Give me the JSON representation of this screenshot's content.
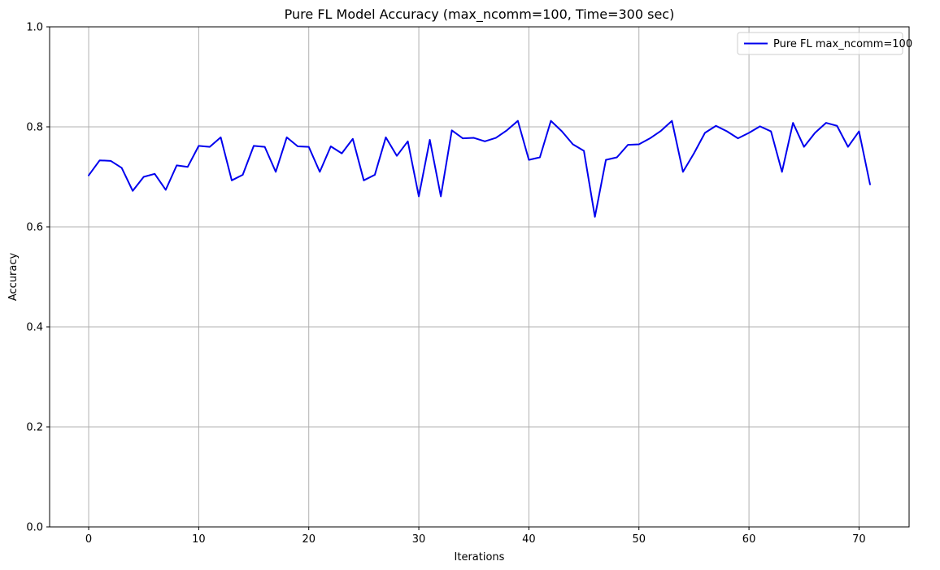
{
  "chart_data": {
    "type": "line",
    "title": "Pure FL Model Accuracy (max_ncomm=100, Time=300 sec)",
    "xlabel": "Iterations",
    "ylabel": "Accuracy",
    "xlim": [
      -3.55,
      74.55
    ],
    "ylim": [
      0,
      1
    ],
    "xticks": [
      0,
      10,
      20,
      30,
      40,
      50,
      60,
      70
    ],
    "yticks": [
      0.0,
      0.2,
      0.4,
      0.6,
      0.8,
      1.0
    ],
    "xtick_labels": [
      "0",
      "10",
      "20",
      "30",
      "40",
      "50",
      "60",
      "70"
    ],
    "ytick_labels": [
      "0.0",
      "0.2",
      "0.4",
      "0.6",
      "0.8",
      "1.0"
    ],
    "grid": true,
    "legend_position": "top-right",
    "series": [
      {
        "name": "Pure FL max_ncomm=100",
        "color": "#0000ee",
        "x": [
          0,
          1,
          2,
          3,
          4,
          5,
          6,
          7,
          8,
          9,
          10,
          11,
          12,
          13,
          14,
          15,
          16,
          17,
          18,
          19,
          20,
          21,
          22,
          23,
          24,
          25,
          26,
          27,
          28,
          29,
          30,
          31,
          32,
          33,
          34,
          35,
          36,
          37,
          38,
          39,
          40,
          41,
          42,
          43,
          44,
          45,
          46,
          47,
          48,
          49,
          50,
          51,
          52,
          53,
          54,
          55,
          56,
          57,
          58,
          59,
          60,
          61,
          62,
          63,
          64,
          65,
          66,
          67,
          68,
          69,
          70,
          71
        ],
        "values": [
          0.703,
          0.733,
          0.732,
          0.718,
          0.672,
          0.7,
          0.706,
          0.674,
          0.723,
          0.72,
          0.762,
          0.76,
          0.779,
          0.693,
          0.704,
          0.762,
          0.76,
          0.71,
          0.779,
          0.761,
          0.76,
          0.71,
          0.761,
          0.747,
          0.776,
          0.693,
          0.704,
          0.779,
          0.742,
          0.771,
          0.661,
          0.774,
          0.661,
          0.793,
          0.777,
          0.778,
          0.771,
          0.778,
          0.793,
          0.812,
          0.734,
          0.739,
          0.812,
          0.791,
          0.765,
          0.752,
          0.62,
          0.734,
          0.739,
          0.764,
          0.765,
          0.777,
          0.792,
          0.812,
          0.71,
          0.747,
          0.788,
          0.802,
          0.791,
          0.777,
          0.788,
          0.801,
          0.791,
          0.71,
          0.808,
          0.76,
          0.788,
          0.808,
          0.802,
          0.76,
          0.791,
          0.685
        ]
      }
    ]
  }
}
